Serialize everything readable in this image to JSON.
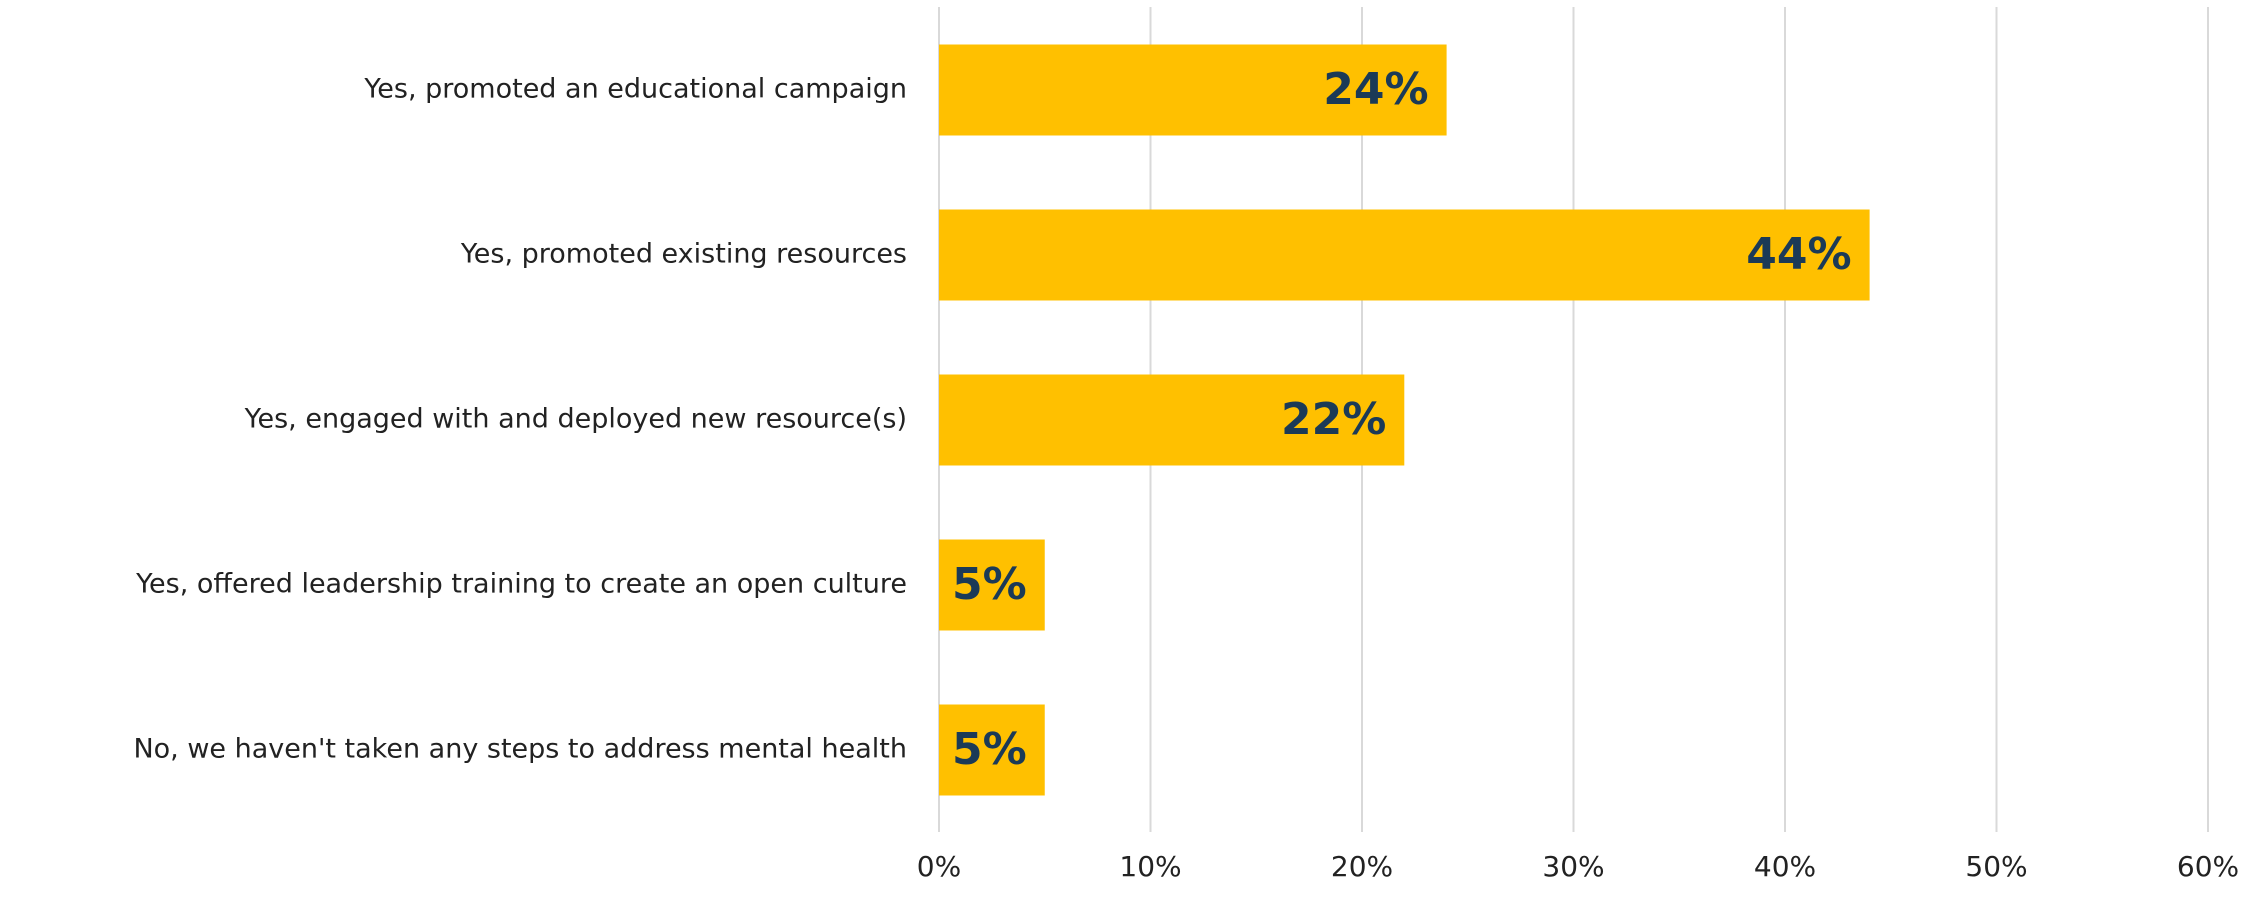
{
  "chart_data": {
    "type": "hbar",
    "categories": [
      "Yes, promoted an educational campaign",
      "Yes, promoted existing resources",
      "Yes, engaged with and deployed new resource(s)",
      "Yes, offered leadership training to create an open culture",
      "No, we haven't taken any steps to address mental health"
    ],
    "values": [
      24,
      44,
      22,
      5,
      5
    ],
    "value_labels": [
      "24%",
      "44%",
      "22%",
      "5%",
      "5%"
    ],
    "color": "#ffc000",
    "label_color": "#1b3a57",
    "xlim": [
      0,
      60
    ],
    "xticks": [
      {
        "value": 0,
        "label": "0%"
      },
      {
        "value": 10,
        "label": "10%"
      },
      {
        "value": 20,
        "label": "20%"
      },
      {
        "value": 30,
        "label": "30%"
      },
      {
        "value": 40,
        "label": "40%"
      },
      {
        "value": 50,
        "label": "50%"
      },
      {
        "value": 60,
        "label": "60%"
      }
    ],
    "grid": true
  }
}
